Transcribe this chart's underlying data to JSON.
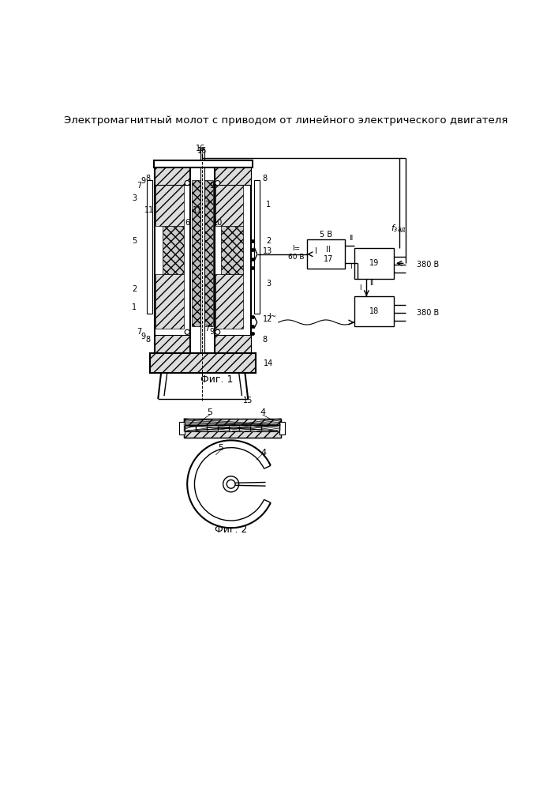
{
  "title": "Электромагнитный молот с приводом от линейного электрического двигателя",
  "fig1_label": "Фиг. 1",
  "fig2_label": "Фиг. 2",
  "bg_color": "#ffffff"
}
